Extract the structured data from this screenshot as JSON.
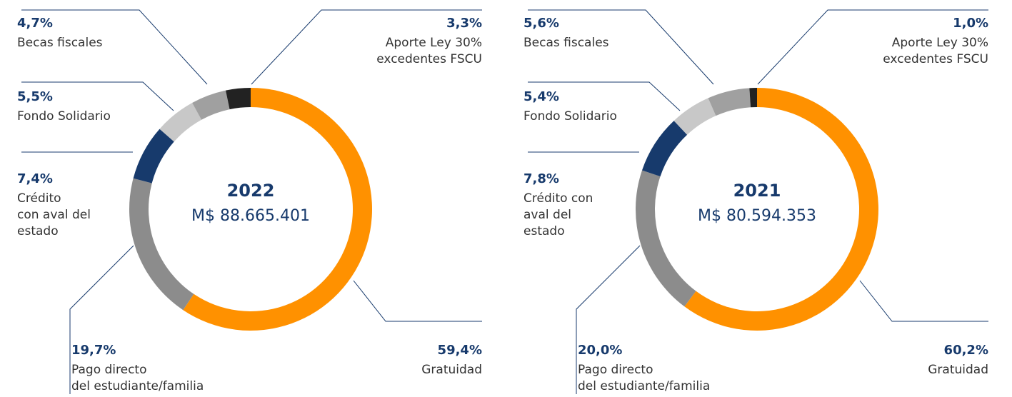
{
  "chart_data": [
    {
      "type": "pie",
      "title": "2022",
      "subtitle": "M$ 88.665.401",
      "categories": [
        "Gratuidad",
        "Pago directo\ndel estudiante/familia",
        "Crédito\ncon aval del\nestado",
        "Fondo Solidario",
        "Becas fiscales",
        "Aporte Ley 30%\nexcedentes FSCU"
      ],
      "values": [
        59.4,
        19.7,
        7.4,
        5.5,
        4.7,
        3.3
      ],
      "value_labels": [
        "59,4%",
        "19,7%",
        "7,4%",
        "5,5%",
        "4,7%",
        "3,3%"
      ],
      "colors": [
        "#ff9100",
        "#8c8c8c",
        "#173a6c",
        "#c8c8c8",
        "#a0a0a0",
        "#222222"
      ]
    },
    {
      "type": "pie",
      "title": "2021",
      "subtitle": "M$ 80.594.353",
      "categories": [
        "Gratuidad",
        "Pago directo\ndel estudiante/familia",
        "Crédito con\naval del\nestado",
        "Fondo Solidario",
        "Becas fiscales",
        "Aporte Ley 30%\nexcedentes FSCU"
      ],
      "values": [
        60.2,
        20.0,
        7.8,
        5.4,
        5.6,
        1.0
      ],
      "value_labels": [
        "60,2%",
        "20,0%",
        "7,8%",
        "5,4%",
        "5,6%",
        "1,0%"
      ],
      "colors": [
        "#ff9100",
        "#8c8c8c",
        "#173a6c",
        "#c8c8c8",
        "#a0a0a0",
        "#222222"
      ]
    }
  ]
}
